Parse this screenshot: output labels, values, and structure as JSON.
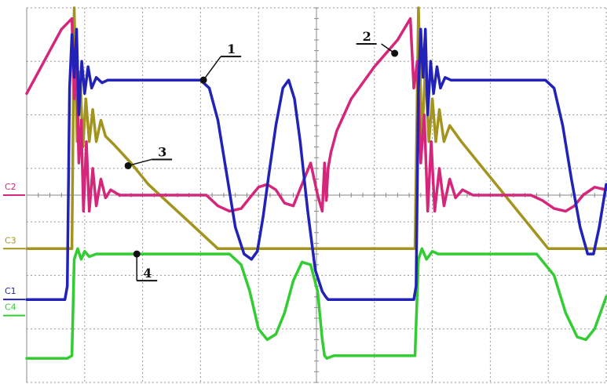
{
  "chart_data": {
    "type": "line",
    "title": "",
    "xlabel": "",
    "ylabel": "",
    "grid": true,
    "grid_divisions": {
      "x": 10,
      "y": 7
    },
    "xlim": [
      0,
      10
    ],
    "ylim": [
      -3.5,
      3.5
    ],
    "channels": [
      {
        "id": "C2",
        "label": "C2",
        "color": "#d4267a",
        "zero_level": 0.0
      },
      {
        "id": "C3",
        "label": "C3",
        "color": "#a39420",
        "zero_level": -1.0
      },
      {
        "id": "C1",
        "label": "C1",
        "color": "#2222b8",
        "zero_level": -1.95
      },
      {
        "id": "C4",
        "label": "C4",
        "color": "#33cc33",
        "zero_level": -2.25
      }
    ],
    "series": [
      {
        "name": "C1",
        "color": "#2222b8",
        "x": [
          0.0,
          0.66,
          0.7,
          0.74,
          0.78,
          0.82,
          0.86,
          0.9,
          0.95,
          1.0,
          1.06,
          1.12,
          1.2,
          1.3,
          1.4,
          1.55,
          1.8,
          2.1,
          2.4,
          2.7,
          3.0,
          3.15,
          3.3,
          3.45,
          3.6,
          3.75,
          3.88,
          3.98,
          4.08,
          4.18,
          4.3,
          4.42,
          4.52,
          4.62,
          4.72,
          4.85,
          4.98,
          5.1,
          5.16,
          5.2,
          5.4,
          5.8,
          6.2,
          6.6,
          6.68,
          6.72,
          6.76,
          6.8,
          6.84,
          6.88,
          6.92,
          6.97,
          7.02,
          7.08,
          7.14,
          7.22,
          7.32,
          7.45,
          7.6,
          7.9,
          8.3,
          8.7,
          8.95,
          9.1,
          9.25,
          9.4,
          9.55,
          9.68,
          9.78,
          9.88,
          10.0
        ],
        "values": [
          -1.95,
          -1.95,
          -1.7,
          2.0,
          3.0,
          2.2,
          3.1,
          1.5,
          2.5,
          1.9,
          2.4,
          2.0,
          2.2,
          2.1,
          2.15,
          2.15,
          2.15,
          2.15,
          2.15,
          2.15,
          2.15,
          2.0,
          1.4,
          0.4,
          -0.6,
          -1.1,
          -1.2,
          -1.05,
          -0.4,
          0.4,
          1.3,
          2.0,
          2.15,
          1.8,
          1.0,
          -0.3,
          -1.4,
          -1.8,
          -1.9,
          -1.95,
          -1.95,
          -1.95,
          -1.95,
          -1.95,
          -1.95,
          -1.7,
          2.0,
          3.1,
          2.2,
          3.1,
          1.5,
          2.5,
          1.9,
          2.4,
          2.0,
          2.2,
          2.15,
          2.15,
          2.15,
          2.15,
          2.15,
          2.15,
          2.15,
          2.0,
          1.3,
          0.3,
          -0.6,
          -1.1,
          -1.1,
          -0.6,
          0.2
        ]
      },
      {
        "name": "C2",
        "color": "#d4267a",
        "x": [
          0.0,
          0.2,
          0.4,
          0.6,
          0.78,
          0.82,
          0.86,
          0.9,
          0.94,
          0.98,
          1.03,
          1.08,
          1.14,
          1.2,
          1.28,
          1.36,
          1.45,
          1.6,
          1.9,
          2.3,
          2.8,
          3.1,
          3.3,
          3.5,
          3.7,
          3.85,
          4.0,
          4.15,
          4.3,
          4.45,
          4.6,
          4.75,
          4.9,
          5.02,
          5.1,
          5.14,
          5.17,
          5.2,
          5.25,
          5.35,
          5.6,
          6.0,
          6.4,
          6.62,
          6.68,
          6.74,
          6.8,
          6.86,
          6.92,
          6.98,
          7.04,
          7.12,
          7.2,
          7.3,
          7.4,
          7.52,
          7.7,
          8.0,
          8.4,
          8.7,
          8.9,
          9.1,
          9.3,
          9.45,
          9.6,
          9.8,
          10.0
        ],
        "values": [
          1.9,
          2.3,
          2.7,
          3.1,
          3.3,
          1.8,
          2.4,
          0.6,
          1.4,
          -0.3,
          1.0,
          -0.3,
          0.5,
          -0.2,
          0.3,
          -0.05,
          0.1,
          0.0,
          0.0,
          0.0,
          0.0,
          0.0,
          -0.2,
          -0.3,
          -0.25,
          -0.05,
          0.15,
          0.2,
          0.1,
          -0.15,
          -0.2,
          0.2,
          0.6,
          0.0,
          -0.3,
          0.6,
          -0.1,
          0.5,
          0.8,
          1.2,
          1.8,
          2.4,
          2.9,
          3.3,
          2.0,
          2.5,
          0.6,
          1.5,
          -0.3,
          1.0,
          -0.3,
          0.5,
          -0.2,
          0.3,
          -0.05,
          0.1,
          0.0,
          0.0,
          0.0,
          0.0,
          -0.1,
          -0.25,
          -0.3,
          -0.2,
          0.0,
          0.15,
          0.1
        ]
      },
      {
        "name": "C3",
        "color": "#a39420",
        "x": [
          0.0,
          0.4,
          0.7,
          0.78,
          0.82,
          0.87,
          0.92,
          0.97,
          1.02,
          1.08,
          1.14,
          1.2,
          1.28,
          1.36,
          1.5,
          1.8,
          2.1,
          2.4,
          2.7,
          3.0,
          3.3,
          3.6,
          4.0,
          4.6,
          5.1,
          5.6,
          6.2,
          6.7,
          6.76,
          6.82,
          6.88,
          6.94,
          7.0,
          7.06,
          7.12,
          7.2,
          7.3,
          7.5,
          7.8,
          8.1,
          8.4,
          8.7,
          9.0,
          9.4,
          9.8,
          10.0
        ],
        "values": [
          -1.0,
          -1.0,
          -1.0,
          -1.0,
          3.5,
          1.0,
          2.3,
          0.9,
          1.8,
          1.0,
          1.6,
          1.0,
          1.4,
          1.1,
          0.95,
          0.6,
          0.2,
          -0.1,
          -0.4,
          -0.7,
          -1.0,
          -1.0,
          -1.0,
          -1.0,
          -1.0,
          -1.0,
          -1.0,
          -1.0,
          3.5,
          1.0,
          2.4,
          1.0,
          1.8,
          1.0,
          1.6,
          1.0,
          1.3,
          1.0,
          0.6,
          0.2,
          -0.2,
          -0.6,
          -1.0,
          -1.0,
          -1.0,
          -1.0
        ]
      },
      {
        "name": "C4",
        "color": "#33cc33",
        "x": [
          0.0,
          0.4,
          0.7,
          0.78,
          0.82,
          0.88,
          0.94,
          1.0,
          1.08,
          1.2,
          1.5,
          2.0,
          2.5,
          3.0,
          3.3,
          3.5,
          3.7,
          3.85,
          4.0,
          4.15,
          4.3,
          4.45,
          4.6,
          4.75,
          4.9,
          5.02,
          5.1,
          5.14,
          5.18,
          5.3,
          5.6,
          6.0,
          6.4,
          6.7,
          6.76,
          6.82,
          6.9,
          7.0,
          7.1,
          7.3,
          7.6,
          8.0,
          8.4,
          8.8,
          9.1,
          9.3,
          9.5,
          9.65,
          9.8,
          10.0
        ],
        "values": [
          -3.05,
          -3.05,
          -3.05,
          -3.0,
          -1.2,
          -1.0,
          -1.2,
          -1.05,
          -1.15,
          -1.1,
          -1.1,
          -1.1,
          -1.1,
          -1.1,
          -1.1,
          -1.1,
          -1.3,
          -1.8,
          -2.5,
          -2.7,
          -2.6,
          -2.2,
          -1.6,
          -1.25,
          -1.3,
          -1.8,
          -2.7,
          -3.0,
          -3.05,
          -3.0,
          -3.0,
          -3.0,
          -3.0,
          -3.0,
          -1.2,
          -1.0,
          -1.2,
          -1.05,
          -1.1,
          -1.1,
          -1.1,
          -1.1,
          -1.1,
          -1.1,
          -1.5,
          -2.2,
          -2.65,
          -2.7,
          -2.5,
          -1.9
        ]
      }
    ],
    "annotations": [
      {
        "label": "1",
        "x": 3.05,
        "y": 2.15,
        "series": "C1"
      },
      {
        "label": "2",
        "x": 6.35,
        "y": 2.65,
        "series": "C2"
      },
      {
        "label": "3",
        "x": 1.75,
        "y": 0.55,
        "series": "C3"
      },
      {
        "label": "4",
        "x": 1.9,
        "y": -1.1,
        "series": "C4"
      }
    ]
  }
}
